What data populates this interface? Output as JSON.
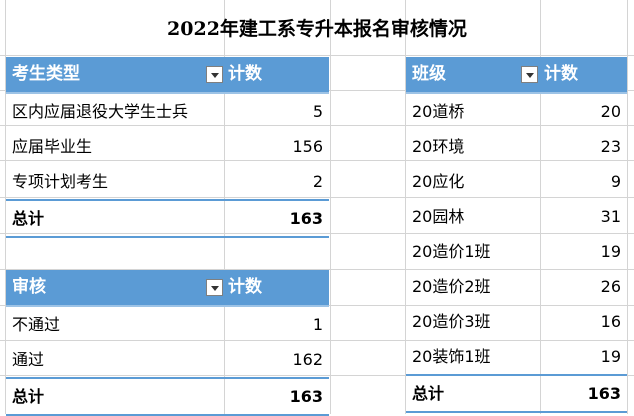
{
  "title": "2022年建工系专升本报名审核情况",
  "pivot_type": {
    "header": "考生类型",
    "count_header": "计数",
    "rows": [
      {
        "label": "区内应届退役大学生士兵",
        "value": "5"
      },
      {
        "label": "应届毕业生",
        "value": "156"
      },
      {
        "label": "专项计划考生",
        "value": "2"
      }
    ],
    "total_label": "总计",
    "total_value": "163"
  },
  "pivot_review": {
    "header": "审核",
    "count_header": "计数",
    "rows": [
      {
        "label": "不通过",
        "value": "1"
      },
      {
        "label": "通过",
        "value": "162"
      }
    ],
    "total_label": "总计",
    "total_value": "163"
  },
  "pivot_class": {
    "header": "班级",
    "count_header": "计数",
    "rows": [
      {
        "label": "20道桥",
        "value": "20"
      },
      {
        "label": "20环境",
        "value": "23"
      },
      {
        "label": "20应化",
        "value": "9"
      },
      {
        "label": "20园林",
        "value": "31"
      },
      {
        "label": "20造价1班",
        "value": "19"
      },
      {
        "label": "20造价2班",
        "value": "26"
      },
      {
        "label": "20造价3班",
        "value": "16"
      },
      {
        "label": "20装饰1班",
        "value": "19"
      }
    ],
    "total_label": "总计",
    "total_value": "163"
  },
  "colors": {
    "header_bg": "#5b9bd5",
    "gridline": "#d4d4d4"
  }
}
